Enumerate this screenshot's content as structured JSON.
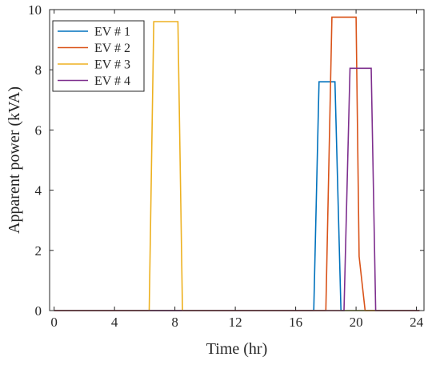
{
  "chart_data": {
    "type": "line",
    "xlabel": "Time (hr)",
    "ylabel": "Apparent power (kVA)",
    "xlim": [
      -0.3,
      24.5
    ],
    "ylim": [
      0,
      10
    ],
    "xticks": [
      0,
      4,
      8,
      12,
      16,
      20,
      24
    ],
    "yticks": [
      0,
      2,
      4,
      6,
      8,
      10
    ],
    "x_tick_labels": [
      "0",
      "4",
      "8",
      "12",
      "16",
      "20",
      "24"
    ],
    "y_tick_labels": [
      "0",
      "2",
      "4",
      "6",
      "8",
      "10"
    ],
    "grid": false,
    "legend_position": "top-left",
    "series": [
      {
        "name": "EV # 1",
        "color": "#0072BD",
        "x": [
          0,
          17.2,
          17.55,
          18.6,
          19.0,
          24.2
        ],
        "y": [
          0,
          0,
          7.6,
          7.6,
          0,
          0
        ]
      },
      {
        "name": "EV # 2",
        "color": "#D95319",
        "x": [
          0,
          18.0,
          18.4,
          20.0,
          20.2,
          20.6,
          24.2
        ],
        "y": [
          0,
          0,
          9.75,
          9.75,
          1.8,
          0,
          0
        ]
      },
      {
        "name": "EV # 3",
        "color": "#EDB120",
        "x": [
          0,
          6.3,
          6.6,
          8.2,
          8.5,
          24.2
        ],
        "y": [
          0,
          0,
          9.6,
          9.6,
          0,
          0
        ]
      },
      {
        "name": "EV # 4",
        "color": "#7E2F8E",
        "x": [
          0,
          19.2,
          19.6,
          21.0,
          21.3,
          24.2
        ],
        "y": [
          0,
          0,
          8.05,
          8.05,
          0,
          0
        ]
      }
    ]
  }
}
